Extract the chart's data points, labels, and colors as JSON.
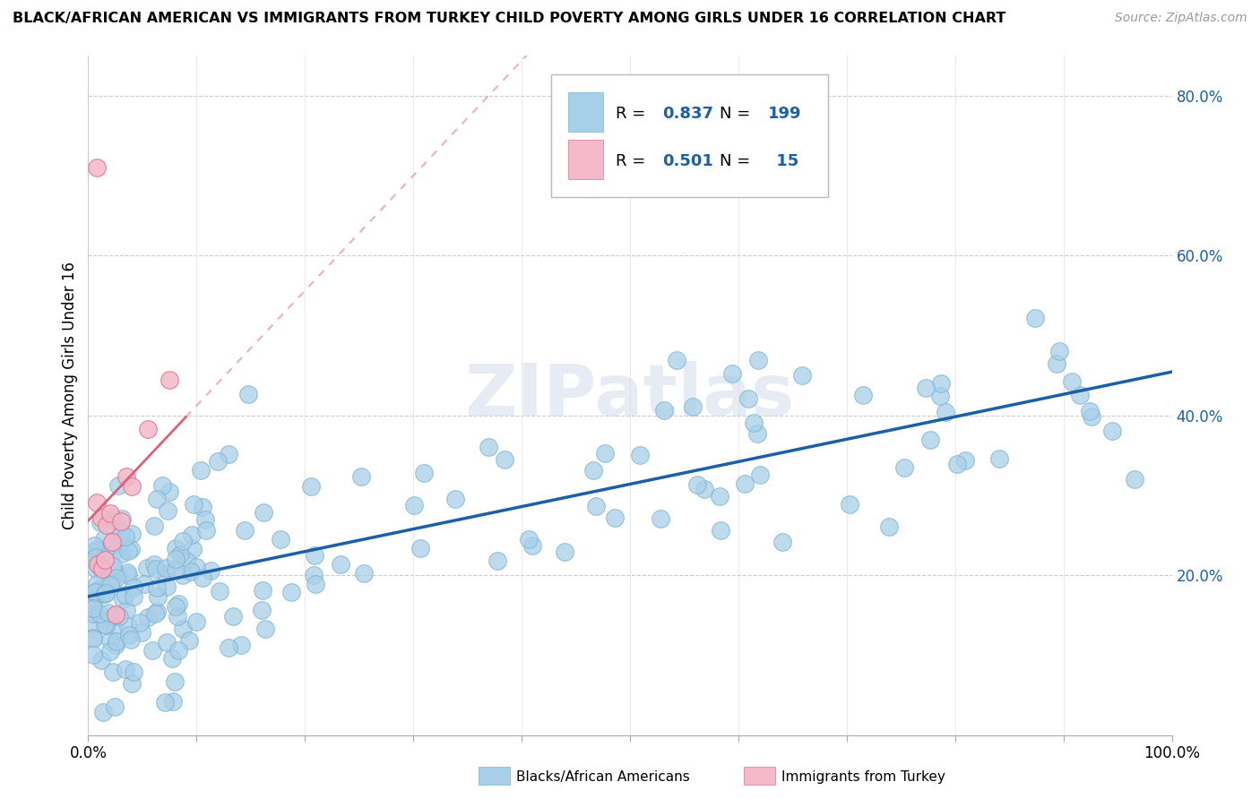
{
  "title": "BLACK/AFRICAN AMERICAN VS IMMIGRANTS FROM TURKEY CHILD POVERTY AMONG GIRLS UNDER 16 CORRELATION CHART",
  "source": "Source: ZipAtlas.com",
  "ylabel": "Child Poverty Among Girls Under 16",
  "xlim": [
    0.0,
    1.0
  ],
  "ylim": [
    0.0,
    0.85
  ],
  "x_ticks": [
    0.0,
    0.1,
    0.2,
    0.3,
    0.4,
    0.5,
    0.6,
    0.7,
    0.8,
    0.9,
    1.0
  ],
  "y_ticks": [
    0.0,
    0.2,
    0.4,
    0.6,
    0.8
  ],
  "y_tick_labels": [
    "0.0%",
    "20.0%",
    "40.0%",
    "60.0%",
    "80.0%"
  ],
  "x_tick_labels_show": [
    "0.0%",
    "100.0%"
  ],
  "blue_R": 0.837,
  "blue_N": 199,
  "pink_R": 0.501,
  "pink_N": 15,
  "blue_color": "#a8cfe8",
  "blue_edge_color": "#7ab3d4",
  "pink_color": "#f4b8c8",
  "pink_edge_color": "#e07090",
  "blue_line_color": "#1a5fa8",
  "pink_line_color": "#e0607a",
  "grid_color": "#cccccc",
  "background_color": "#ffffff",
  "watermark": "ZIPatlas"
}
